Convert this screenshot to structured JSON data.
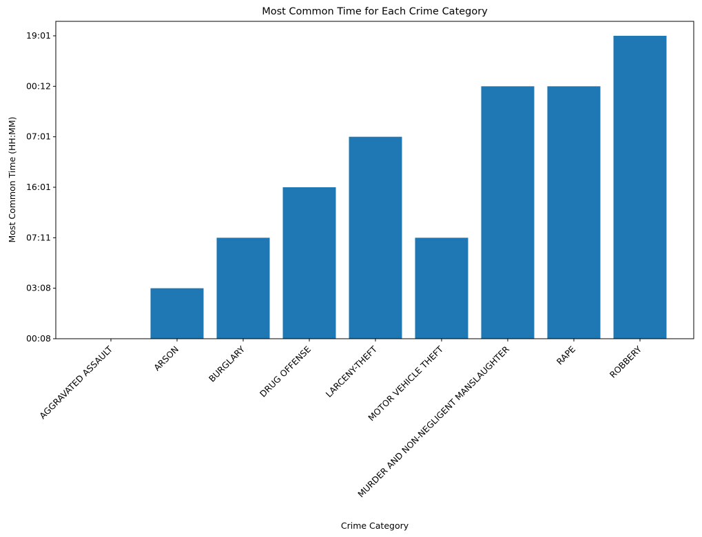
{
  "chart_data": {
    "type": "bar",
    "title": "Most Common Time for Each Crime Category",
    "xlabel": "Crime Category",
    "ylabel": "Most Common Time (HH:MM)",
    "categories": [
      "AGGRAVATED ASSAULT",
      "ARSON",
      "BURGLARY",
      "DRUG OFFENSE",
      "LARCENY-THEFT",
      "MOTOR VEHICLE THEFT",
      "MURDER AND NON-NEGLIGENT MANSLAUGHTER",
      "RAPE",
      "ROBBERY"
    ],
    "values": [
      "00:08",
      "03:08",
      "07:11",
      "16:01",
      "07:01",
      "07:11",
      "00:12",
      "00:12",
      "19:01"
    ],
    "y_ticks": [
      "00:08",
      "03:08",
      "07:11",
      "16:01",
      "07:01",
      "00:12",
      "19:01"
    ],
    "bar_color": "#1f77b4",
    "grid": false
  }
}
